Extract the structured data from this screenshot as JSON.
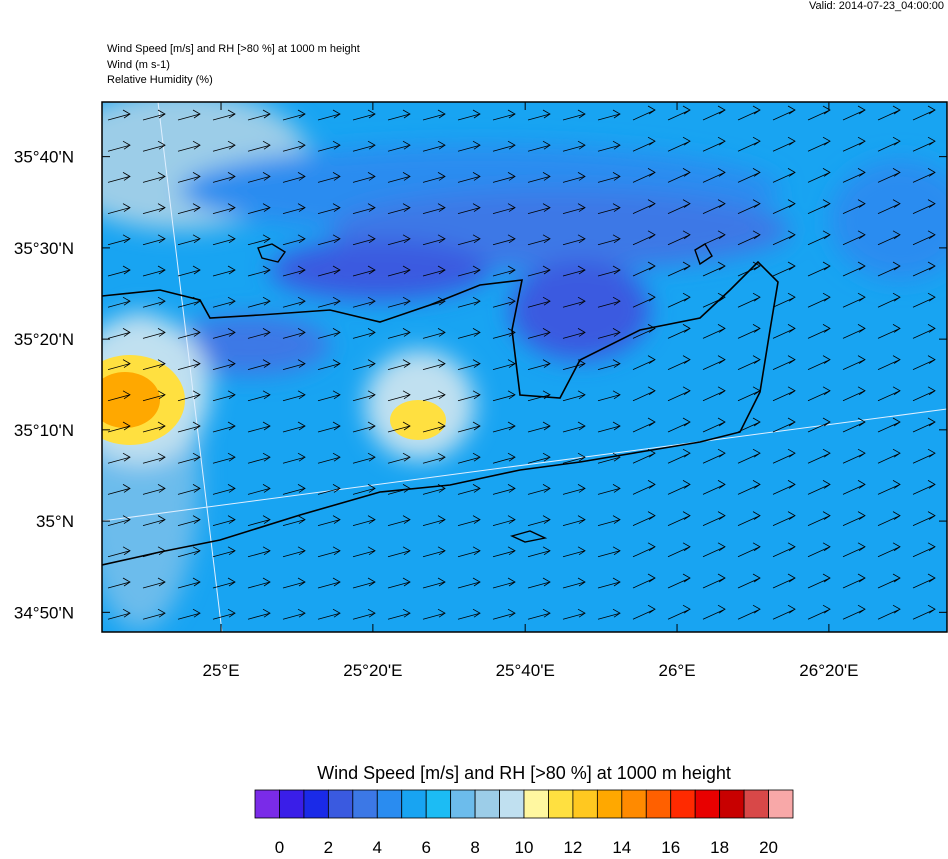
{
  "header": {
    "valid": "Valid: 2014-07-23_04:00:00",
    "lines": [
      "Wind Speed [m/s] and RH [>80 %] at 1000 m height",
      "Wind   (m s-1)",
      "Relative Humidity   (%)"
    ]
  },
  "map": {
    "xlim": [
      24.739,
      26.592
    ],
    "ylim": [
      34.797,
      35.767
    ],
    "xticks": [
      {
        "value": 25,
        "label": "25°E"
      },
      {
        "value": 25.333,
        "label": "25°20'E"
      },
      {
        "value": 25.667,
        "label": "25°40'E"
      },
      {
        "value": 26,
        "label": "26°E"
      },
      {
        "value": 26.333,
        "label": "26°20'E"
      }
    ],
    "yticks": [
      {
        "value": 34.833,
        "label": "34°50'N"
      },
      {
        "value": 35,
        "label": "35°N"
      },
      {
        "value": 35.167,
        "label": "35°10'N"
      },
      {
        "value": 35.333,
        "label": "35°20'N"
      },
      {
        "value": 35.5,
        "label": "35°30'N"
      },
      {
        "value": 35.667,
        "label": "35°40'N"
      }
    ]
  },
  "colorbar": {
    "title": "Wind Speed [m/s] and RH [>80 %] at 1000 m height",
    "range": [
      -1,
      21
    ],
    "colors": [
      "#7a2be8",
      "#3a1ee8",
      "#1a2ae8",
      "#3a5ae0",
      "#3c78e6",
      "#2a8cf0",
      "#18a4f2",
      "#1cbcf4",
      "#6cbcec",
      "#9ccde8",
      "#c0e0f0",
      "#fff7a0",
      "#ffe040",
      "#ffc820",
      "#ffa800",
      "#ff8a00",
      "#ff6000",
      "#ff2a00",
      "#e80000",
      "#c80000",
      "#d84848",
      "#f8a8a8"
    ],
    "ticks": [
      0,
      2,
      4,
      6,
      8,
      10,
      12,
      14,
      16,
      18,
      20
    ]
  }
}
